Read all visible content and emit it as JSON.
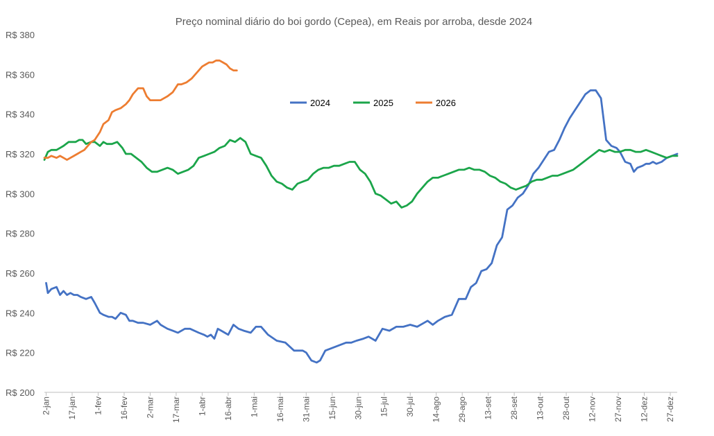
{
  "chart_data": {
    "type": "line",
    "title": "Preço nominal diário do boi gordo (Cepea), em Reais por arroba, desde 2024",
    "ylim": [
      200,
      380
    ],
    "yticks": [
      200,
      220,
      240,
      260,
      280,
      300,
      320,
      340,
      360,
      380
    ],
    "ytick_labels": [
      "R$ 200",
      "R$ 220",
      "R$ 240",
      "R$ 260",
      "R$ 280",
      "R$ 300",
      "R$ 320",
      "R$ 340",
      "R$ 360",
      "R$ 380"
    ],
    "xlim": [
      1,
      366
    ],
    "x_unit": "day of year",
    "xticks": [
      2,
      17,
      32,
      47,
      62,
      77,
      92,
      107,
      122,
      137,
      152,
      167,
      182,
      197,
      212,
      227,
      242,
      257,
      272,
      287,
      302,
      317,
      332,
      347,
      362
    ],
    "xtick_labels": [
      "2-jan",
      "17-jan",
      "1-fev",
      "16-fev",
      "2-mar",
      "17-mar",
      "1-abr",
      "16-abr",
      "1-mai",
      "16-mai",
      "31-mai",
      "15-jun",
      "30-jun",
      "15-jul",
      "30-jul",
      "14-ago",
      "29-ago",
      "13-set",
      "28-set",
      "13-out",
      "28-out",
      "12-nov",
      "27-nov",
      "12-dez",
      "27-dez"
    ],
    "grid": false,
    "legend_position": "top-center",
    "series": [
      {
        "name": "2024",
        "color": "#4472C4",
        "x": [
          2,
          3,
          5,
          8,
          10,
          12,
          14,
          16,
          18,
          20,
          22,
          25,
          28,
          30,
          33,
          35,
          38,
          40,
          42,
          45,
          48,
          50,
          52,
          55,
          58,
          62,
          66,
          68,
          70,
          72,
          75,
          78,
          82,
          85,
          90,
          93,
          95,
          97,
          99,
          101,
          103,
          105,
          107,
          110,
          113,
          116,
          120,
          123,
          126,
          130,
          135,
          140,
          145,
          150,
          152,
          155,
          158,
          160,
          163,
          166,
          169,
          172,
          175,
          178,
          181,
          185,
          188,
          192,
          196,
          200,
          204,
          208,
          212,
          216,
          220,
          222,
          225,
          228,
          232,
          236,
          240,
          244,
          247,
          250,
          253,
          256,
          259,
          262,
          265,
          268,
          271,
          274,
          277,
          280,
          283,
          286,
          289,
          292,
          295,
          298,
          301,
          304,
          307,
          310,
          313,
          316,
          319,
          322,
          325,
          328,
          331,
          333,
          336,
          339,
          341,
          343,
          346,
          348,
          350,
          352,
          354,
          357,
          360,
          363,
          366
        ],
        "values": [
          255,
          250,
          252,
          253,
          249,
          251,
          249,
          250,
          249,
          249,
          248,
          247,
          248,
          245,
          240,
          239,
          238,
          238,
          237,
          240,
          239,
          236,
          236,
          235,
          235,
          234,
          236,
          234,
          233,
          232,
          231,
          230,
          232,
          232,
          230,
          229,
          228,
          229,
          227,
          232,
          231,
          230,
          229,
          234,
          232,
          231,
          230,
          233,
          233,
          229,
          226,
          225,
          221,
          221,
          220,
          216,
          215,
          216,
          221,
          222,
          223,
          224,
          225,
          225,
          226,
          227,
          228,
          226,
          232,
          231,
          233,
          233,
          234,
          233,
          235,
          236,
          234,
          236,
          238,
          239,
          247,
          247,
          253,
          255,
          261,
          262,
          265,
          274,
          278,
          292,
          294,
          298,
          300,
          304,
          310,
          313,
          317,
          321,
          322,
          327,
          333,
          338,
          342,
          346,
          350,
          352,
          352,
          348,
          327,
          324,
          323,
          321,
          316,
          315,
          311,
          313,
          314,
          315,
          315,
          316,
          315,
          316,
          318,
          319,
          320
        ]
      },
      {
        "name": "2025",
        "color": "#1BA54A",
        "x": [
          1,
          3,
          5,
          8,
          10,
          12,
          15,
          17,
          19,
          21,
          23,
          25,
          28,
          30,
          33,
          35,
          37,
          40,
          43,
          46,
          48,
          51,
          54,
          57,
          60,
          63,
          66,
          69,
          72,
          75,
          78,
          81,
          84,
          87,
          90,
          93,
          96,
          99,
          102,
          105,
          108,
          111,
          114,
          117,
          120,
          123,
          126,
          129,
          132,
          135,
          138,
          141,
          144,
          147,
          150,
          153,
          156,
          159,
          162,
          165,
          168,
          171,
          174,
          177,
          180,
          183,
          186,
          189,
          192,
          195,
          198,
          201,
          204,
          207,
          210,
          213,
          216,
          219,
          222,
          225,
          228,
          231,
          234,
          237,
          240,
          243,
          246,
          249,
          252,
          255,
          258,
          261,
          264,
          267,
          270,
          273,
          276,
          279,
          282,
          285,
          288,
          291,
          294,
          297,
          300,
          303,
          306,
          309,
          312,
          315,
          318,
          321,
          324,
          327,
          330,
          333,
          336,
          339,
          342,
          345,
          348,
          351,
          354,
          357,
          360,
          363,
          366
        ],
        "values": [
          317,
          321,
          322,
          322,
          323,
          324,
          326,
          326,
          326,
          327,
          327,
          325,
          326,
          326,
          324,
          326,
          325,
          325,
          326,
          323,
          320,
          320,
          318,
          316,
          313,
          311,
          311,
          312,
          313,
          312,
          310,
          311,
          312,
          314,
          318,
          319,
          320,
          321,
          323,
          324,
          327,
          326,
          328,
          326,
          320,
          319,
          318,
          314,
          309,
          306,
          305,
          303,
          302,
          305,
          306,
          307,
          310,
          312,
          313,
          313,
          314,
          314,
          315,
          316,
          316,
          312,
          310,
          306,
          300,
          299,
          297,
          295,
          296,
          293,
          294,
          296,
          300,
          303,
          306,
          308,
          308,
          309,
          310,
          311,
          312,
          312,
          313,
          312,
          312,
          311,
          309,
          308,
          306,
          305,
          303,
          302,
          303,
          304,
          306,
          307,
          307,
          308,
          309,
          309,
          310,
          311,
          312,
          314,
          316,
          318,
          320,
          322,
          321,
          322,
          321,
          321,
          322,
          322,
          321,
          321,
          322,
          321,
          320,
          319,
          318,
          319,
          319
        ]
      },
      {
        "name": "2026",
        "color": "#ED7D31",
        "x": [
          1,
          3,
          5,
          8,
          10,
          12,
          14,
          16,
          18,
          20,
          22,
          24,
          26,
          28,
          30,
          33,
          35,
          38,
          40,
          42,
          45,
          48,
          50,
          52,
          55,
          58,
          60,
          62,
          65,
          68,
          70,
          72,
          75,
          78,
          80,
          83,
          86,
          89,
          92,
          94,
          96,
          98,
          100,
          102,
          104,
          106,
          108,
          110,
          112
        ],
        "values": [
          318,
          318,
          319,
          318,
          319,
          318,
          317,
          318,
          319,
          320,
          321,
          322,
          324,
          326,
          327,
          331,
          335,
          337,
          341,
          342,
          343,
          345,
          347,
          350,
          353,
          353,
          349,
          347,
          347,
          347,
          348,
          349,
          351,
          355,
          355,
          356,
          358,
          361,
          364,
          365,
          366,
          366,
          367,
          367,
          366,
          365,
          363,
          362,
          362
        ]
      }
    ]
  }
}
